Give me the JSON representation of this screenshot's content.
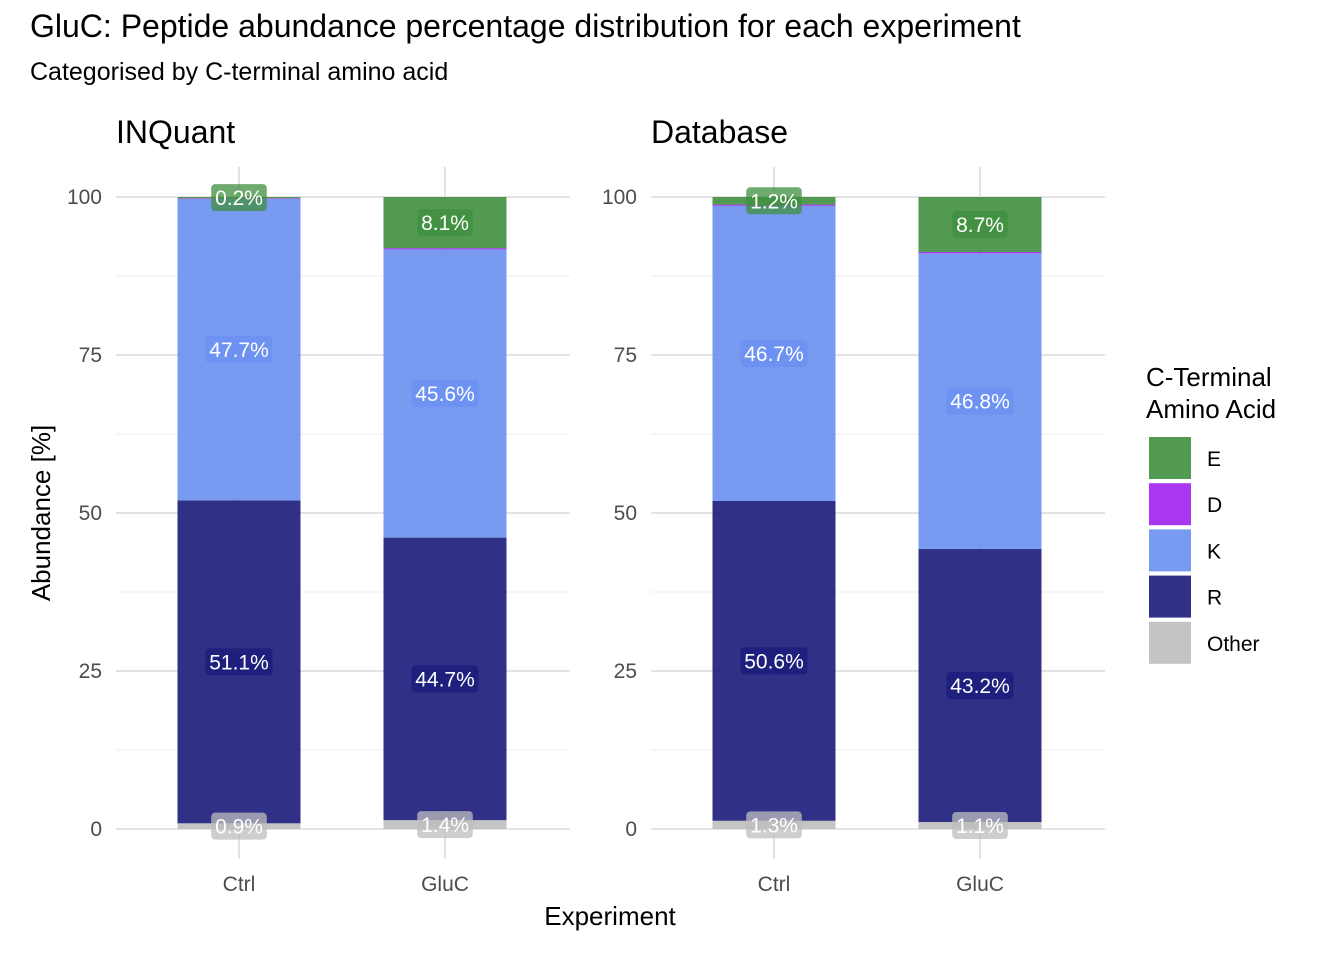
{
  "title": "GluC: Peptide abundance percentage distribution for each experiment",
  "subtitle": "Categorised by C-terminal amino acid",
  "colors": {
    "E": "#3f8f3f",
    "D": "#a020f0",
    "K": "#6a8ff0",
    "R": "#1a1a7a",
    "Other": "#bebebe"
  },
  "chart_data": {
    "type": "bar",
    "stacked": true,
    "xlabel": "Experiment",
    "ylabel": "Abundance [%]",
    "ylim": [
      0,
      100
    ],
    "yticks": [
      "0",
      "25",
      "50",
      "75",
      "100"
    ],
    "grid": true,
    "legend": {
      "title_line1": "C-Terminal",
      "title_line2": "Amino Acid",
      "position": "right",
      "entries": [
        "E",
        "D",
        "K",
        "R",
        "Other"
      ]
    },
    "facets": [
      {
        "name": "INQuant",
        "categories": [
          "Ctrl",
          "GluC"
        ],
        "series": [
          {
            "name": "Other",
            "values": [
              0.9,
              1.4
            ],
            "labels": [
              "0.9%",
              "1.4%"
            ]
          },
          {
            "name": "R",
            "values": [
              51.1,
              44.7
            ],
            "labels": [
              "51.1%",
              "44.7%"
            ]
          },
          {
            "name": "K",
            "values": [
              47.7,
              45.6
            ],
            "labels": [
              "47.7%",
              "45.6%"
            ]
          },
          {
            "name": "D",
            "values": [
              0.1,
              0.2
            ],
            "labels": [
              "",
              ""
            ]
          },
          {
            "name": "E",
            "values": [
              0.2,
              8.1
            ],
            "labels": [
              "0.2%",
              "8.1%"
            ]
          }
        ]
      },
      {
        "name": "Database",
        "categories": [
          "Ctrl",
          "GluC"
        ],
        "series": [
          {
            "name": "Other",
            "values": [
              1.3,
              1.1
            ],
            "labels": [
              "1.3%",
              "1.1%"
            ]
          },
          {
            "name": "R",
            "values": [
              50.6,
              43.2
            ],
            "labels": [
              "50.6%",
              "43.2%"
            ]
          },
          {
            "name": "K",
            "values": [
              46.7,
              46.8
            ],
            "labels": [
              "46.7%",
              "46.8%"
            ]
          },
          {
            "name": "D",
            "values": [
              0.2,
              0.2
            ],
            "labels": [
              "",
              ""
            ]
          },
          {
            "name": "E",
            "values": [
              1.2,
              8.7
            ],
            "labels": [
              "1.2%",
              "8.7%"
            ]
          }
        ]
      }
    ]
  }
}
